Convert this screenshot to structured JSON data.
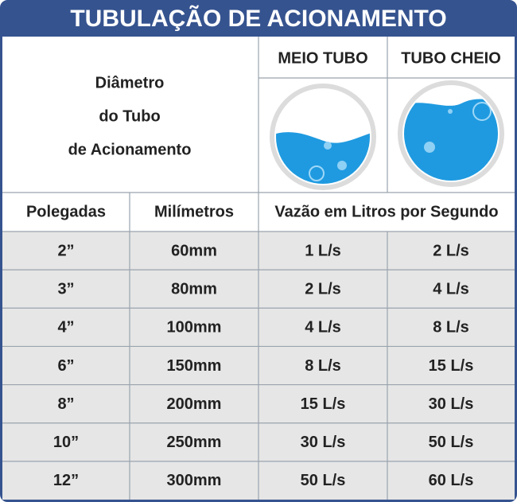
{
  "header": {
    "title": "TUBULAÇÃO DE ACIONAMENTO",
    "diameter_label": [
      "Diâmetro",
      "do Tubo",
      "de Acionamento"
    ],
    "half_tube": "MEIO TUBO",
    "full_tube": "TUBO CHEIO"
  },
  "table": {
    "columns": [
      "Polegadas",
      "Milímetros",
      "Vazão em Litros por Segundo"
    ],
    "rows": [
      [
        "2”",
        "60mm",
        "1 L/s",
        "2 L/s"
      ],
      [
        "3”",
        "80mm",
        "2 L/s",
        "4 L/s"
      ],
      [
        "4”",
        "100mm",
        "4 L/s",
        "8 L/s"
      ],
      [
        "6”",
        "150mm",
        "8 L/s",
        "15 L/s"
      ],
      [
        "8”",
        "200mm",
        "15 L/s",
        "30 L/s"
      ],
      [
        "10”",
        "250mm",
        "30 L/s",
        "50 L/s"
      ],
      [
        "12”",
        "300mm",
        "50 L/s",
        "60 L/s"
      ]
    ]
  }
}
